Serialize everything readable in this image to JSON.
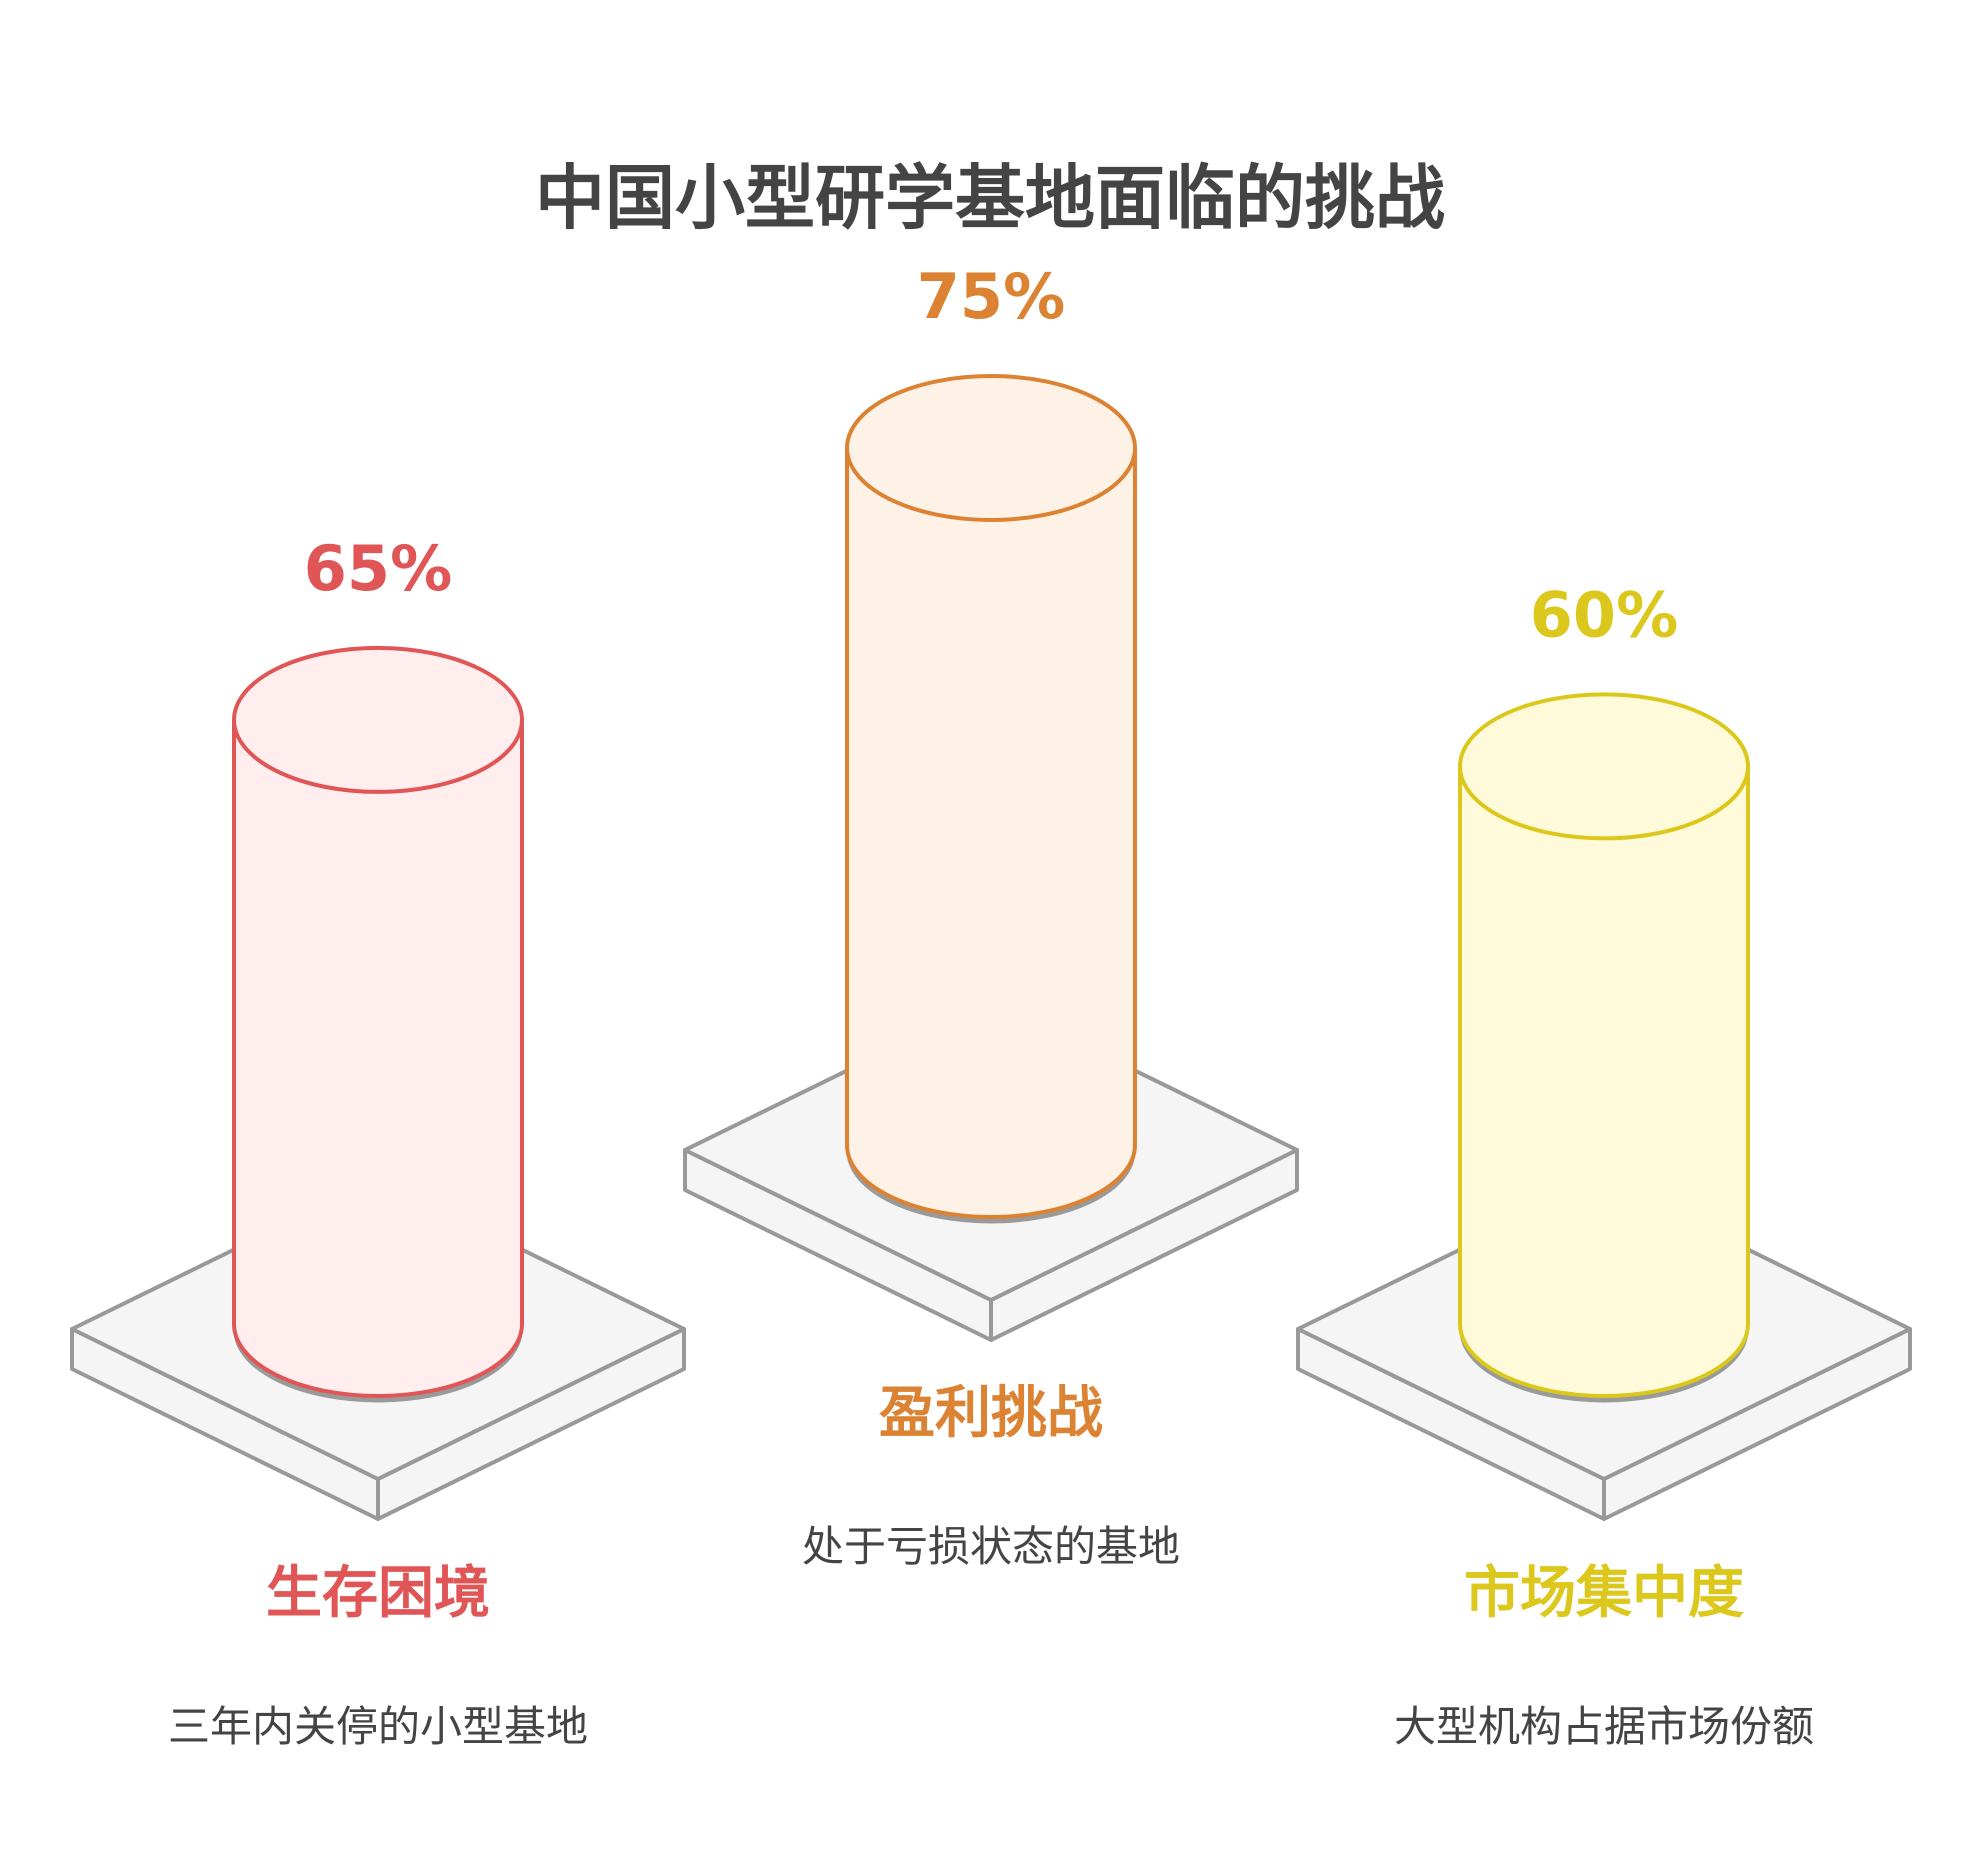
{
  "chart_data": {
    "type": "bar",
    "title": "中国小型研学基地面临的挑战",
    "unit": "%",
    "categories": [
      "生存困境",
      "盈利挑战",
      "市场集中度"
    ],
    "values": [
      65,
      75,
      60
    ],
    "value_labels": [
      "65%",
      "75%",
      "60%"
    ],
    "descriptions": [
      "三年内关停的小型基地",
      "处于亏损状态的基地",
      "大型机构占据市场份额"
    ],
    "colors": [
      "#E05555",
      "#DB8333",
      "#DCC81C"
    ],
    "fills": [
      "#FFEEED",
      "#FEF1E5",
      "#FEFADA"
    ],
    "platform_fill": "#F5F5F5",
    "platform_stroke": "#999999",
    "title_color": "#444444",
    "description_color": "#444444"
  }
}
